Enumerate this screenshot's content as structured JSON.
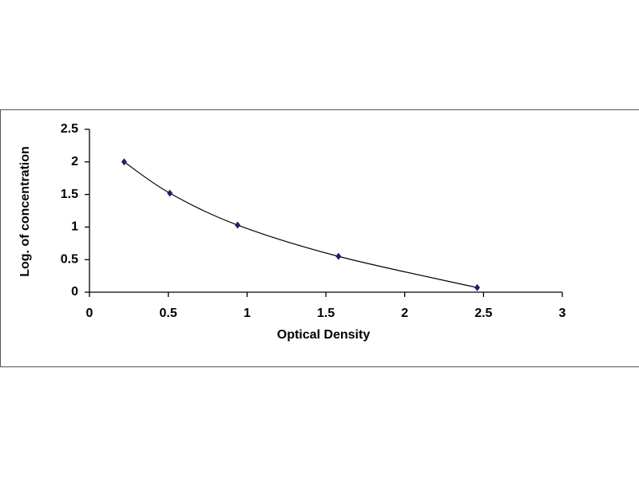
{
  "chart_data": {
    "type": "scatter",
    "x_label": "Optical Density",
    "y_label": "Log. of concentration",
    "x": [
      0.22,
      0.51,
      0.94,
      1.58,
      2.46
    ],
    "series": [
      {
        "color": "#1f1f6b",
        "values": [
          2.0,
          1.52,
          1.03,
          0.55,
          0.07
        ]
      }
    ],
    "smooth_line": true,
    "line_color": "#000000",
    "xlim": [
      0,
      3
    ],
    "xticks": [
      0,
      0.5,
      1,
      1.5,
      2,
      2.5,
      3
    ],
    "ylim": [
      0,
      2.5
    ],
    "yticks": [
      0,
      0.5,
      1,
      1.5,
      2,
      2.5
    ]
  }
}
